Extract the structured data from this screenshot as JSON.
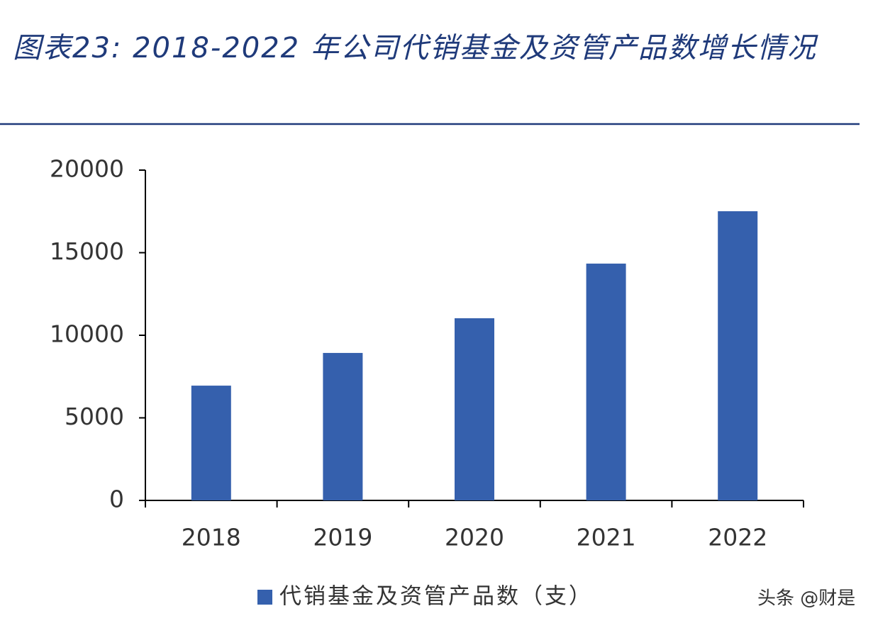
{
  "chart_data": {
    "type": "bar",
    "title": "图表23:  2018-2022 年公司代销基金及资管产品数增长情况",
    "categories": [
      "2018",
      "2019",
      "2020",
      "2021",
      "2022"
    ],
    "series": [
      {
        "name": "代销基金及资管产品数（支）",
        "color": "#3560ad",
        "values": [
          6950,
          8930,
          11030,
          14340,
          17510
        ]
      }
    ],
    "ylim": [
      0,
      20000
    ],
    "yticks": [
      0,
      5000,
      10000,
      15000,
      20000
    ],
    "grid": false,
    "legend": "bottom",
    "watermark": "头条 @财是"
  }
}
